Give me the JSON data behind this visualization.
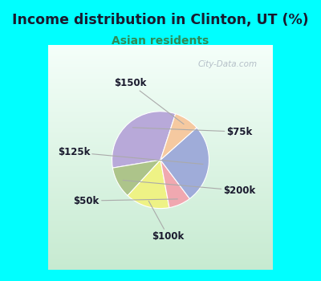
{
  "title": "Income distribution in Clinton, UT (%)",
  "subtitle": "Asian residents",
  "title_color": "#1a1a2e",
  "subtitle_color": "#2e8b57",
  "background_outer": "#00ffff",
  "background_inner_top": "#f0faf8",
  "background_inner_bottom": "#c8e6c9",
  "labels": [
    "$75k",
    "$200k",
    "$100k",
    "$50k",
    "$125k",
    "$150k"
  ],
  "sizes": [
    31,
    10,
    14,
    7,
    25,
    8
  ],
  "colors": [
    "#b8a9d9",
    "#adc48a",
    "#eef285",
    "#f0a8b0",
    "#9facd9",
    "#f5c9a0"
  ],
  "startangle": 72,
  "watermark": "City-Data.com",
  "label_color": "#1a1a2e"
}
